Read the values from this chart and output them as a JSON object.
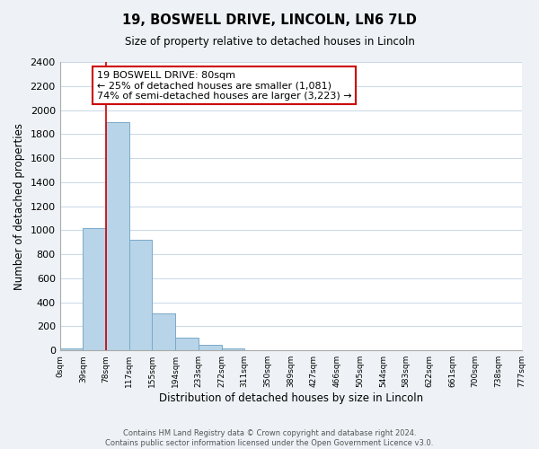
{
  "title": "19, BOSWELL DRIVE, LINCOLN, LN6 7LD",
  "subtitle": "Size of property relative to detached houses in Lincoln",
  "xlabel": "Distribution of detached houses by size in Lincoln",
  "ylabel": "Number of detached properties",
  "bin_labels": [
    "0sqm",
    "39sqm",
    "78sqm",
    "117sqm",
    "155sqm",
    "194sqm",
    "233sqm",
    "272sqm",
    "311sqm",
    "350sqm",
    "389sqm",
    "427sqm",
    "466sqm",
    "505sqm",
    "544sqm",
    "583sqm",
    "622sqm",
    "661sqm",
    "700sqm",
    "738sqm",
    "777sqm"
  ],
  "counts": [
    20,
    1020,
    1900,
    920,
    310,
    105,
    48,
    20,
    0,
    0,
    0,
    0,
    0,
    0,
    0,
    0,
    0,
    0,
    0,
    0
  ],
  "bar_color": "#b8d4e8",
  "bar_edge_color": "#7aaac8",
  "property_line_x": 2,
  "property_line_color": "#cc0000",
  "annotation_line1": "19 BOSWELL DRIVE: 80sqm",
  "annotation_line2": "← 25% of detached houses are smaller (1,081)",
  "annotation_line3": "74% of semi-detached houses are larger (3,223) →",
  "ylim": [
    0,
    2400
  ],
  "yticks": [
    0,
    200,
    400,
    600,
    800,
    1000,
    1200,
    1400,
    1600,
    1800,
    2000,
    2200,
    2400
  ],
  "footnote": "Contains HM Land Registry data © Crown copyright and database right 2024.\nContains public sector information licensed under the Open Government Licence v3.0.",
  "background_color": "#eef2f6",
  "plot_background_color": "#ffffff",
  "grid_color": "#c8d8e8"
}
